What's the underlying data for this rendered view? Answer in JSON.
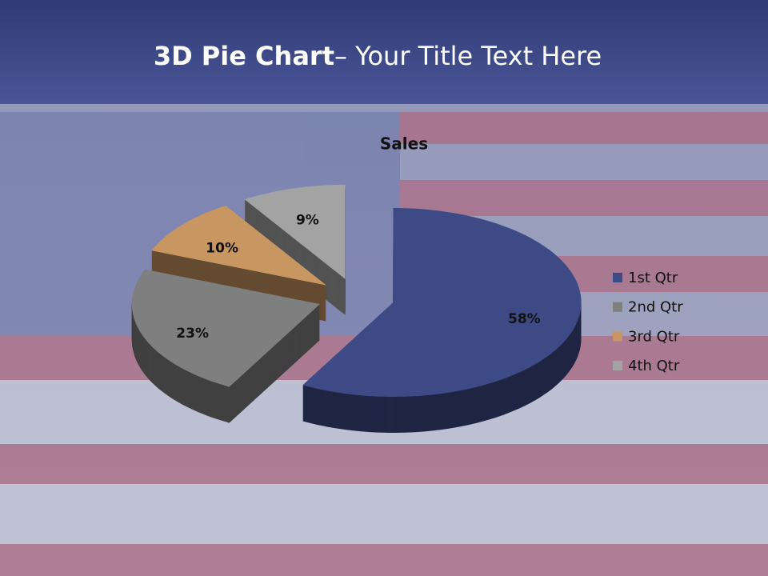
{
  "slide": {
    "title_strong": "3D Pie Chart",
    "title_rest": "– Your Title Text Here"
  },
  "chart_data": {
    "type": "pie",
    "title": "Sales",
    "categories": [
      "1st Qtr",
      "2nd Qtr",
      "3rd Qtr",
      "4th Qtr"
    ],
    "values": [
      58,
      23,
      10,
      9
    ],
    "value_labels": [
      "58%",
      "23%",
      "10%",
      "9%"
    ],
    "colors": [
      "#3d4a86",
      "#7f7f7f",
      "#c89661",
      "#a3a3a3"
    ],
    "legend": "right"
  }
}
